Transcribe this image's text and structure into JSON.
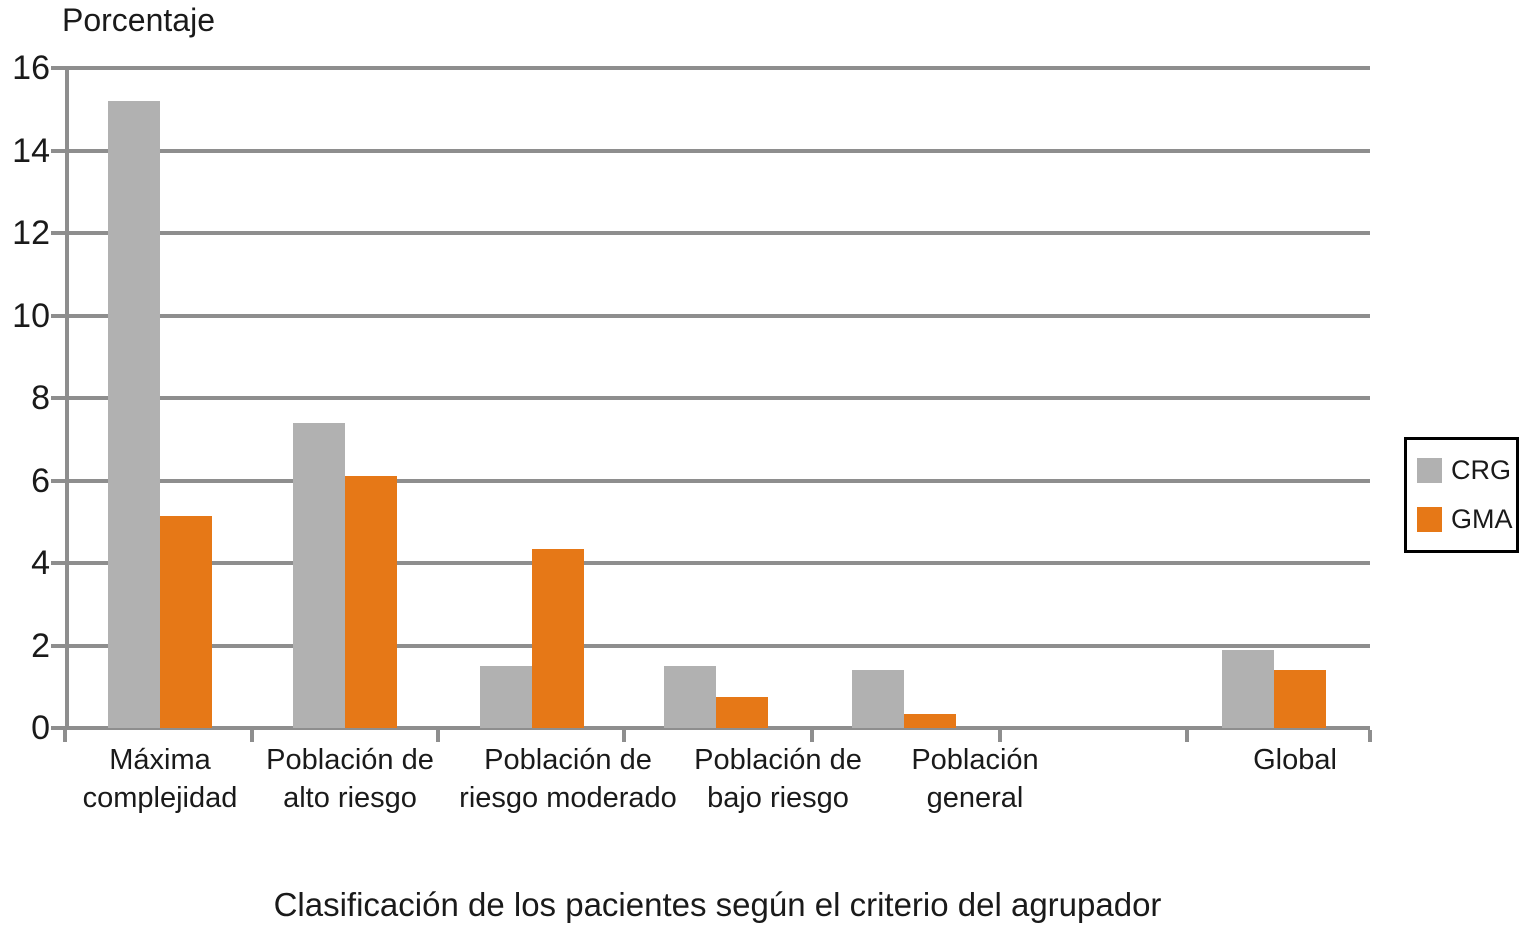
{
  "chart_data": {
    "type": "bar",
    "y_axis_title": "Porcentaje",
    "x_axis_title": "Clasificación de los pacientes según el criterio del agrupador",
    "categories": [
      "Máxima complejidad",
      "Población de alto riesgo",
      "Población de riesgo moderado",
      "Población de bajo riesgo",
      "Población general",
      "Global"
    ],
    "series": [
      {
        "name": "CRG",
        "color": "#b1b1b1",
        "values": [
          15.2,
          7.4,
          1.5,
          1.5,
          1.4,
          1.9
        ]
      },
      {
        "name": "GMA",
        "color": "#e67817",
        "values": [
          5.15,
          6.1,
          4.35,
          0.75,
          0.35,
          1.4
        ]
      }
    ],
    "ylim": [
      0,
      16
    ],
    "ytick_step": 2,
    "yticks": [
      0,
      2,
      4,
      6,
      8,
      10,
      12,
      14,
      16
    ],
    "grid": true,
    "legend_position": "right",
    "grid_color": "#8e8e8e"
  }
}
